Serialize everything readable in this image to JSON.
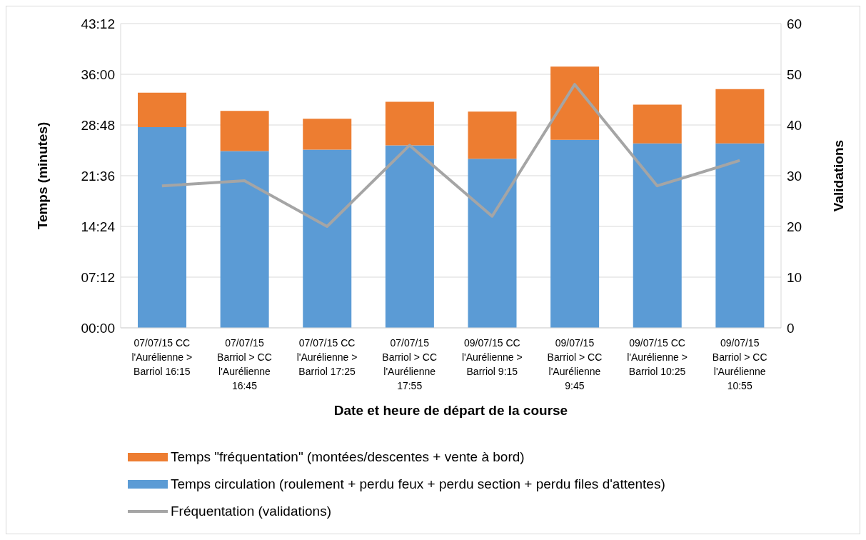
{
  "chart_data": {
    "type": "bar",
    "xlabel": "Date et heure de départ de la course",
    "ylabel": "Temps (minutes)",
    "y2label": "Validations",
    "categories": [
      "07/07/15 CC l'Aurélienne > Barriol 16:15",
      "07/07/15 Barriol > CC l'Aurélienne 16:45",
      "07/07/15 CC l'Aurélienne > Barriol  17:25",
      "07/07/15 Barriol > CC l'Aurélienne 17:55",
      "09/07/15 CC l'Aurélienne > Barriol 9:15",
      "09/07/15 Barriol > CC l'Aurélienne 9:45",
      "09/07/15 CC l'Aurélienne > Barriol 10:25",
      "09/07/15 Barriol > CC l'Aurélienne 10:55"
    ],
    "series": [
      {
        "name": "Temps circulation (roulement + perdu feux + perdu section +  perdu files d'attentes)",
        "color": "#5b9bd5",
        "values": [
          28.5,
          25.1,
          25.3,
          25.9,
          24.0,
          26.7,
          26.2,
          26.2
        ]
      },
      {
        "name": "Temps \"fréquentation\" (montées/descentes + vente à bord)",
        "color": "#ed7d31",
        "values": [
          4.9,
          5.7,
          4.4,
          6.2,
          6.7,
          10.4,
          5.5,
          7.7
        ]
      },
      {
        "name": "Fréquentation (validations)",
        "type": "line",
        "axis": "y2",
        "color": "#a5a5a5",
        "values": [
          28,
          29,
          20,
          36,
          22,
          48,
          28,
          33
        ]
      }
    ],
    "stacked": true,
    "ylim": [
      0,
      43.2
    ],
    "yticks": [
      {
        "value": 0,
        "label": "00:00"
      },
      {
        "value": 7.2,
        "label": "07:12"
      },
      {
        "value": 14.4,
        "label": "14:24"
      },
      {
        "value": 21.6,
        "label": "21:36"
      },
      {
        "value": 28.8,
        "label": "28:48"
      },
      {
        "value": 36,
        "label": "36:00"
      },
      {
        "value": 43.2,
        "label": "43:12"
      }
    ],
    "y2lim": [
      0,
      60
    ],
    "y2ticks": [
      0,
      10,
      20,
      30,
      40,
      50,
      60
    ],
    "grid": "y",
    "legend": "bottom",
    "marker": "none",
    "line_style": "solid"
  }
}
